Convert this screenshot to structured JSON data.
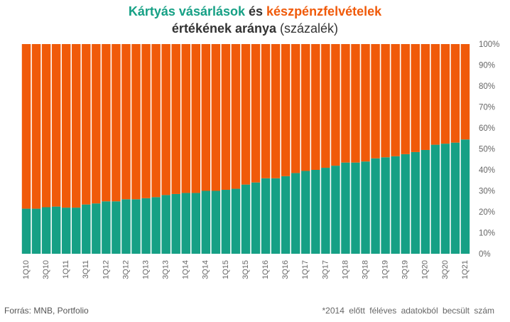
{
  "title": {
    "part1": "Kártyás vásárlások",
    "part2": " és ",
    "part3": "készpénzfelvételek",
    "line2_bold": "értékének aránya",
    "line2_rest": " (százalék)"
  },
  "footer": {
    "source": "Forrás: MNB, Portfolio",
    "note": "*2014 előtt féléves adatokból becsült szám"
  },
  "colors": {
    "card": "#16a085",
    "cash": "#f05a0a"
  },
  "chart_data": {
    "type": "bar",
    "stacked": true,
    "categories": [
      "1Q10",
      "2Q10",
      "3Q10",
      "4Q10",
      "1Q11",
      "2Q11",
      "3Q11",
      "4Q11",
      "1Q12",
      "2Q12",
      "3Q12",
      "4Q12",
      "1Q13",
      "2Q13",
      "3Q13",
      "4Q13",
      "1Q14",
      "2Q14",
      "3Q14",
      "4Q14",
      "1Q15",
      "2Q15",
      "3Q15",
      "4Q15",
      "1Q16",
      "2Q16",
      "3Q16",
      "4Q16",
      "1Q17",
      "2Q17",
      "3Q17",
      "4Q17",
      "1Q18",
      "2Q18",
      "3Q18",
      "4Q18",
      "1Q19",
      "2Q19",
      "3Q19",
      "4Q19",
      "1Q20",
      "2Q20",
      "3Q20",
      "4Q20",
      "1Q21"
    ],
    "tick_labels": [
      "1Q10",
      "3Q10",
      "1Q11",
      "3Q11",
      "1Q12",
      "3Q12",
      "1Q13",
      "3Q13",
      "1Q14",
      "3Q14",
      "1Q15",
      "3Q15",
      "1Q16",
      "3Q16",
      "1Q17",
      "3Q17",
      "1Q18",
      "3Q18",
      "1Q19",
      "3Q19",
      "1Q20",
      "3Q20",
      "1Q21"
    ],
    "series": [
      {
        "name": "Kártyás vásárlások",
        "color": "#16a085",
        "values": [
          21.5,
          21.5,
          22.2,
          22.5,
          22.0,
          22.0,
          23.5,
          24.0,
          25.0,
          25.0,
          26.0,
          26.0,
          26.5,
          27.0,
          28.0,
          28.5,
          29.0,
          29.0,
          30.0,
          30.0,
          30.5,
          31.0,
          33.0,
          34.0,
          36.0,
          36.0,
          37.0,
          38.5,
          39.5,
          40.0,
          41.0,
          42.0,
          43.5,
          43.5,
          44.0,
          45.5,
          46.0,
          46.5,
          47.5,
          48.5,
          49.5,
          52.0,
          52.5,
          53.0,
          54.5
        ]
      },
      {
        "name": "készpénzfelvételek",
        "color": "#f05a0a",
        "values": [
          78.5,
          78.5,
          77.8,
          77.5,
          78.0,
          78.0,
          76.5,
          76.0,
          75.0,
          75.0,
          74.0,
          74.0,
          73.5,
          73.0,
          72.0,
          71.5,
          71.0,
          71.0,
          70.0,
          70.0,
          69.5,
          69.0,
          67.0,
          66.0,
          64.0,
          64.0,
          63.0,
          61.5,
          60.5,
          60.0,
          59.0,
          58.0,
          56.5,
          56.5,
          56.0,
          54.5,
          54.0,
          53.5,
          52.5,
          51.5,
          50.5,
          48.0,
          47.5,
          47.0,
          45.5
        ]
      }
    ],
    "ylim": [
      0,
      100
    ],
    "yticks": [
      "0%",
      "10%",
      "20%",
      "30%",
      "40%",
      "50%",
      "60%",
      "70%",
      "80%",
      "90%",
      "100%"
    ],
    "grid": false,
    "legend": "none"
  }
}
